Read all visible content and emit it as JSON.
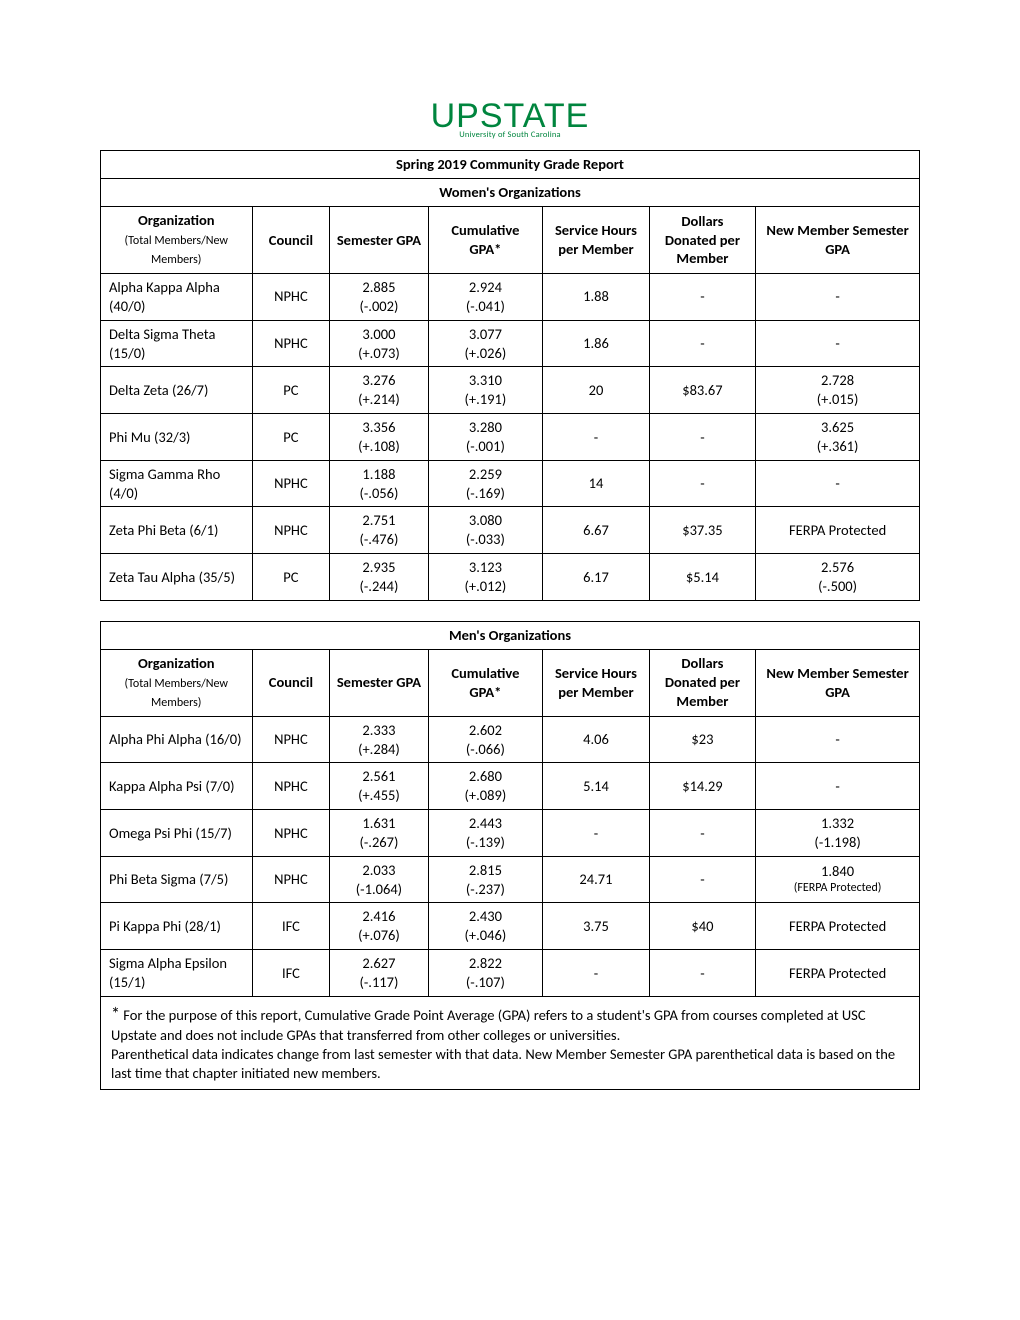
{
  "logo": {
    "main": "UPSTATE",
    "sub": "University of South Carolina"
  },
  "title": "Spring 2019 Community Grade Report",
  "womens_title": "Women's Organizations",
  "mens_title": "Men's Organizations",
  "columns": {
    "org_main": "Organization",
    "org_sub": "(Total Members/New Members)",
    "council": "Council",
    "sem_gpa": "Semester GPA",
    "cum_gpa": "Cumulative GPA*",
    "service": "Service Hours per Member",
    "dollars": "Dollars Donated per Member",
    "new_member": "New Member Semester GPA"
  },
  "women": [
    {
      "org": "Alpha Kappa Alpha (40/0)",
      "council": "NPHC",
      "sem": "2.885",
      "semd": "(-.002)",
      "cum": "2.924",
      "cumd": "(-.041)",
      "svc": "1.88",
      "dol": "-",
      "nm": "-",
      "nmd": ""
    },
    {
      "org": "Delta Sigma Theta (15/0)",
      "council": "NPHC",
      "sem": "3.000",
      "semd": "(+.073)",
      "cum": "3.077",
      "cumd": "(+.026)",
      "svc": "1.86",
      "dol": "-",
      "nm": "-",
      "nmd": ""
    },
    {
      "org": "Delta Zeta (26/7)",
      "council": "PC",
      "sem": "3.276",
      "semd": "(+.214)",
      "cum": "3.310",
      "cumd": "(+.191)",
      "svc": "20",
      "dol": "$83.67",
      "nm": "2.728",
      "nmd": "(+.015)"
    },
    {
      "org": "Phi Mu (32/3)",
      "council": "PC",
      "sem": "3.356",
      "semd": "(+.108)",
      "cum": "3.280",
      "cumd": "(-.001)",
      "svc": "-",
      "dol": "-",
      "nm": "3.625",
      "nmd": "(+.361)"
    },
    {
      "org": "Sigma Gamma Rho (4/0)",
      "council": "NPHC",
      "sem": "1.188",
      "semd": "(-.056)",
      "cum": "2.259",
      "cumd": "(-.169)",
      "svc": "14",
      "dol": "-",
      "nm": "-",
      "nmd": ""
    },
    {
      "org": "Zeta Phi Beta (6/1)",
      "council": "NPHC",
      "sem": "2.751",
      "semd": "(-.476)",
      "cum": "3.080",
      "cumd": "(-.033)",
      "svc": "6.67",
      "dol": "$37.35",
      "nm": "FERPA Protected",
      "nmd": ""
    },
    {
      "org": "Zeta Tau Alpha (35/5)",
      "council": "PC",
      "sem": "2.935",
      "semd": "(-.244)",
      "cum": "3.123",
      "cumd": "(+.012)",
      "svc": "6.17",
      "dol": "$5.14",
      "nm": "2.576",
      "nmd": "(-.500)"
    }
  ],
  "men": [
    {
      "org": "Alpha Phi Alpha (16/0)",
      "council": "NPHC",
      "sem": "2.333",
      "semd": "(+.284)",
      "cum": "2.602",
      "cumd": "(-.066)",
      "svc": "4.06",
      "dol": "$23",
      "nm": "-",
      "nmd": ""
    },
    {
      "org": "Kappa Alpha Psi (7/0)",
      "council": "NPHC",
      "sem": "2.561",
      "semd": "(+.455)",
      "cum": "2.680",
      "cumd": "(+.089)",
      "svc": "5.14",
      "dol": "$14.29",
      "nm": "-",
      "nmd": ""
    },
    {
      "org": "Omega Psi Phi (15/7)",
      "council": "NPHC",
      "sem": "1.631",
      "semd": "(-.267)",
      "cum": "2.443",
      "cumd": "(-.139)",
      "svc": "-",
      "dol": "-",
      "nm": "1.332",
      "nmd": "(-1.198)"
    },
    {
      "org": "Phi Beta Sigma (7/5)",
      "council": "NPHC",
      "sem": "2.033",
      "semd": "(-1.064)",
      "cum": "2.815",
      "cumd": "(-.237)",
      "svc": "24.71",
      "dol": "-",
      "nm": "1.840",
      "nmd": "(FERPA Protected)",
      "nmd_small": true
    },
    {
      "org": "Pi Kappa Phi (28/1)",
      "council": "IFC",
      "sem": "2.416",
      "semd": "(+.076)",
      "cum": "2.430",
      "cumd": "(+.046)",
      "svc": "3.75",
      "dol": "$40",
      "nm": "FERPA Protected",
      "nmd": ""
    },
    {
      "org": "Sigma Alpha Epsilon (15/1)",
      "council": "IFC",
      "sem": "2.627",
      "semd": "(-.117)",
      "cum": "2.822",
      "cumd": "(-.107)",
      "svc": "-",
      "dol": "-",
      "nm": "FERPA Protected",
      "nmd": ""
    }
  ],
  "footnote": {
    "line1": "* For the purpose of this report, Cumulative Grade Point Average (GPA) refers to a student's GPA from courses completed at USC Upstate and does not include GPAs that transferred from other colleges or universities.",
    "line2": "Parenthetical data indicates change from last semester with that data. New Member Semester GPA parenthetical data is based on the last time that chapter initiated new members."
  },
  "style": {
    "border_color": "#000000",
    "logo_color": "#00853e",
    "background_color": "#ffffff",
    "body_font_size": 14.5,
    "title_font_size": 20,
    "header_font_size": 14.5,
    "col_widths_pct": [
      18.5,
      9.5,
      12,
      14,
      13,
      13,
      20
    ]
  }
}
